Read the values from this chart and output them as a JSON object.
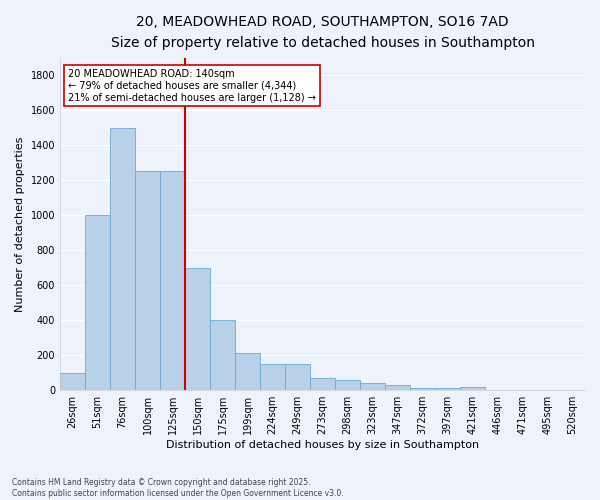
{
  "title_line1": "20, MEADOWHEAD ROAD, SOUTHAMPTON, SO16 7AD",
  "title_line2": "Size of property relative to detached houses in Southampton",
  "xlabel": "Distribution of detached houses by size in Southampton",
  "ylabel": "Number of detached properties",
  "categories": [
    "26sqm",
    "51sqm",
    "76sqm",
    "100sqm",
    "125sqm",
    "150sqm",
    "175sqm",
    "199sqm",
    "224sqm",
    "249sqm",
    "273sqm",
    "298sqm",
    "323sqm",
    "347sqm",
    "372sqm",
    "397sqm",
    "421sqm",
    "446sqm",
    "471sqm",
    "495sqm",
    "520sqm"
  ],
  "values": [
    100,
    1000,
    1500,
    1250,
    1250,
    700,
    400,
    210,
    150,
    150,
    70,
    60,
    40,
    30,
    10,
    10,
    20,
    0,
    0,
    0,
    0
  ],
  "bar_color": "#b8d0e8",
  "bar_edge_color": "#6aaad4",
  "vline_x": 4.5,
  "vline_color": "#cc0000",
  "annotation_text": "20 MEADOWHEAD ROAD: 140sqm\n← 79% of detached houses are smaller (4,344)\n21% of semi-detached houses are larger (1,128) →",
  "annotation_box_color": "white",
  "annotation_box_edge": "#cc0000",
  "ylim": [
    0,
    1900
  ],
  "yticks": [
    0,
    200,
    400,
    600,
    800,
    1000,
    1200,
    1400,
    1600,
    1800
  ],
  "bg_color": "#eef2fa",
  "grid_color": "#d8dff0",
  "footer": "Contains HM Land Registry data © Crown copyright and database right 2025.\nContains public sector information licensed under the Open Government Licence v3.0.",
  "title_fontsize": 10,
  "subtitle_fontsize": 8.5,
  "tick_fontsize": 7,
  "axis_label_fontsize": 8,
  "footer_fontsize": 5.5
}
